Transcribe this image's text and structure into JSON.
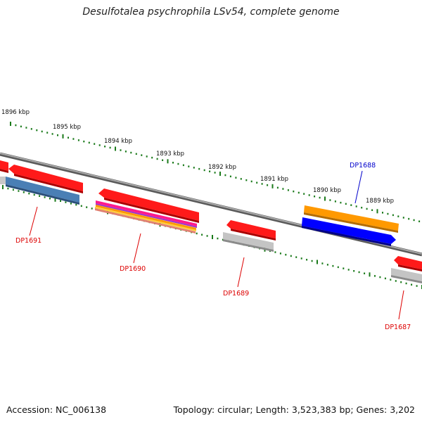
{
  "title": "Desulfotalea psychrophila LSv54, complete genome",
  "footer": {
    "accession": "Accession: NC_006138",
    "topology": "Topology: circular; Length: 3,523,383 bp; Genes: 3,202"
  },
  "ruler_labels": [
    "1896 kbp",
    "1895 kbp",
    "1894 kbp",
    "1893 kbp",
    "1892 kbp",
    "1891 kbp",
    "1890 kbp",
    "1889 kbp"
  ],
  "genes": [
    {
      "name": "DP1691",
      "color": "#dd0000"
    },
    {
      "name": "DP1690",
      "color": "#dd0000"
    },
    {
      "name": "DP1689",
      "color": "#dd0000"
    },
    {
      "name": "DP1688",
      "color": "#0000cc"
    },
    {
      "name": "DP1687",
      "color": "#dd0000"
    }
  ],
  "colors": {
    "tick": "#1a7a1a",
    "backbone": "#808080",
    "red": "#ff1a1a",
    "steelblue": "#4a7fb5",
    "grey": "#b0b0b0",
    "orange": "#ff9900",
    "blue": "#0000ff",
    "magenta": "#ff1a8c"
  }
}
